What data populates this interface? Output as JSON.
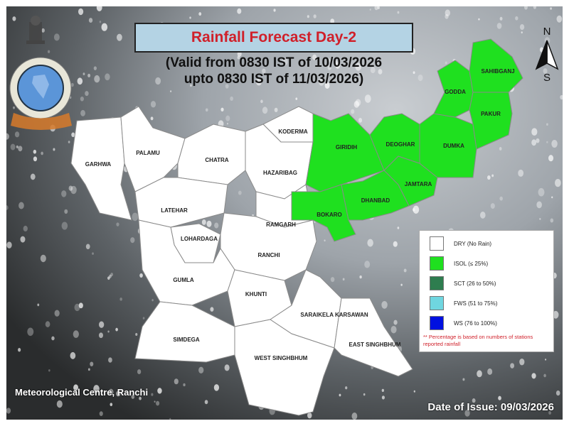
{
  "title": "Rainfall Forecast Day-2",
  "validity": {
    "line1": "(Valid from 0830 IST of 10/03/2026",
    "line2": "upto 0830 IST of 11/03/2026)"
  },
  "north_arrow": {
    "n": "N",
    "s": "S"
  },
  "colors": {
    "dry": "#ffffff",
    "isol": "#1fe01f",
    "sct": "#2e7d4f",
    "fws": "#6fd6e0",
    "ws": "#0010e0",
    "title_text": "#d0202a",
    "title_box": "#b4d3e4"
  },
  "districts": {
    "garhwa": {
      "name": "GARHWA",
      "category": "DRY"
    },
    "palamu": {
      "name": "PALAMU",
      "category": "DRY"
    },
    "chatra": {
      "name": "CHATRA",
      "category": "DRY"
    },
    "koderma": {
      "name": "KODERMA",
      "category": "DRY"
    },
    "hazaribag": {
      "name": "HAZARIBAG",
      "category": "DRY"
    },
    "latehar": {
      "name": "LATEHAR",
      "category": "DRY"
    },
    "lohardaga": {
      "name": "LOHARDAGA",
      "category": "DRY"
    },
    "ramgarh": {
      "name": "RAMGARH",
      "category": "DRY"
    },
    "ranchi": {
      "name": "RANCHI",
      "category": "DRY"
    },
    "gumla": {
      "name": "GUMLA",
      "category": "DRY"
    },
    "khunti": {
      "name": "KHUNTI",
      "category": "DRY"
    },
    "simdega": {
      "name": "SIMDEGA",
      "category": "DRY"
    },
    "west_singhbhum": {
      "name": "WEST SINGHBHUM",
      "category": "DRY"
    },
    "saraikela": {
      "name": "SARAIKELA KARSAWAN",
      "category": "DRY"
    },
    "east_singhbhum": {
      "name": "EAST SINGHBHUM",
      "category": "DRY"
    },
    "giridih": {
      "name": "GIRIDIH",
      "category": "ISOL"
    },
    "bokaro": {
      "name": "BOKARO",
      "category": "ISOL"
    },
    "dhanbad": {
      "name": "DHANBAD",
      "category": "ISOL"
    },
    "jamtara": {
      "name": "JAMTARA",
      "category": "ISOL"
    },
    "deoghar": {
      "name": "DEOGHAR",
      "category": "ISOL"
    },
    "dumka": {
      "name": "DUMKA",
      "category": "ISOL"
    },
    "godda": {
      "name": "GODDA",
      "category": "ISOL"
    },
    "sahibganj": {
      "name": "SAHIBGANJ",
      "category": "ISOL"
    },
    "pakur": {
      "name": "PAKUR",
      "category": "ISOL"
    }
  },
  "legend": {
    "items": [
      {
        "label": "DRY (No Rain)",
        "color": "#ffffff"
      },
      {
        "label": "ISOL (≤ 25%)",
        "color": "#1fe01f"
      },
      {
        "label": "SCT (26 to 50%)",
        "color": "#2e7d4f"
      },
      {
        "label": "FWS (51 to 75%)",
        "color": "#6fd6e0"
      },
      {
        "label": "WS (76 to 100%)",
        "color": "#0010e0"
      }
    ],
    "note": "** Percentage is based on numbers of stations reported rainfall"
  },
  "footer": {
    "centre": "Meteorological Centre, Ranchi",
    "issue_date": "Date of Issue: 09/03/2026"
  }
}
